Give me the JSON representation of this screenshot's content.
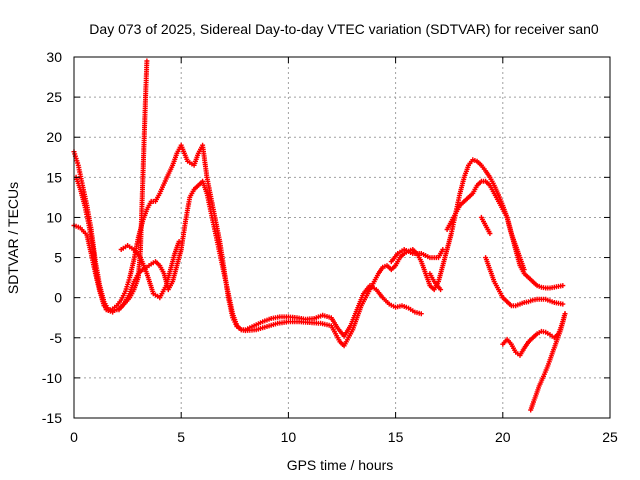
{
  "chart_data": {
    "type": "scatter",
    "title": "Day 073 of 2025, Sidereal Day-to-day VTEC variation (SDTVAR) for receiver san0",
    "xlabel": "GPS time / hours",
    "ylabel": "SDTVAR / TECUs",
    "xlim": [
      0,
      25
    ],
    "ylim": [
      -15,
      30
    ],
    "xticks": [
      0,
      5,
      10,
      15,
      20,
      25
    ],
    "yticks": [
      -15,
      -10,
      -5,
      0,
      5,
      10,
      15,
      20,
      25,
      30
    ],
    "grid": true,
    "marker": "+",
    "series": [
      {
        "name": "SDTVAR",
        "color": "#ff0000",
        "segments": [
          [
            [
              0.0,
              18.2
            ],
            [
              0.2,
              16.5
            ],
            [
              0.4,
              14.0
            ],
            [
              0.6,
              11.5
            ],
            [
              0.8,
              8.5
            ],
            [
              1.0,
              4.5
            ],
            [
              1.2,
              1.5
            ],
            [
              1.4,
              -0.5
            ],
            [
              1.6,
              -1.5
            ],
            [
              1.8,
              -1.7
            ],
            [
              2.0,
              -1.5
            ],
            [
              2.2,
              -1.2
            ],
            [
              2.4,
              -0.6
            ],
            [
              2.6,
              0.0
            ],
            [
              2.8,
              1.0
            ],
            [
              3.0,
              2.5
            ],
            [
              3.1,
              6.0
            ],
            [
              3.15,
              10.0
            ],
            [
              3.2,
              14.0
            ],
            [
              3.25,
              18.0
            ],
            [
              3.3,
              22.0
            ],
            [
              3.35,
              26.0
            ],
            [
              3.4,
              29.5
            ]
          ],
          [
            [
              0.0,
              9.0
            ],
            [
              0.3,
              8.7
            ],
            [
              0.6,
              7.8
            ],
            [
              0.8,
              5.5
            ],
            [
              1.0,
              3.0
            ],
            [
              1.2,
              0.8
            ],
            [
              1.4,
              -1.0
            ],
            [
              1.6,
              -1.6
            ],
            [
              1.8,
              -1.4
            ],
            [
              2.0,
              -1.0
            ],
            [
              2.2,
              -0.3
            ],
            [
              2.4,
              0.8
            ],
            [
              2.6,
              2.5
            ],
            [
              2.8,
              4.8
            ],
            [
              3.0,
              7.5
            ],
            [
              3.2,
              9.5
            ],
            [
              3.4,
              11.0
            ],
            [
              3.6,
              12.0
            ],
            [
              3.8,
              12.0
            ],
            [
              4.0,
              13.0
            ],
            [
              4.3,
              14.8
            ],
            [
              4.6,
              16.5
            ],
            [
              4.8,
              18.0
            ],
            [
              5.0,
              19.0
            ],
            [
              5.3,
              17.0
            ],
            [
              5.6,
              16.5
            ],
            [
              5.8,
              18.0
            ],
            [
              6.0,
              19.0
            ],
            [
              6.2,
              15.0
            ],
            [
              6.5,
              11.0
            ],
            [
              6.8,
              7.0
            ],
            [
              7.0,
              3.5
            ],
            [
              7.2,
              0.0
            ],
            [
              7.4,
              -2.5
            ],
            [
              7.6,
              -3.6
            ],
            [
              7.8,
              -4.0
            ],
            [
              8.0,
              -4.1
            ],
            [
              8.5,
              -4.0
            ],
            [
              9.0,
              -3.6
            ],
            [
              9.5,
              -3.2
            ],
            [
              10.0,
              -3.0
            ],
            [
              10.5,
              -3.0
            ],
            [
              11.0,
              -3.1
            ],
            [
              11.5,
              -3.2
            ],
            [
              12.0,
              -3.5
            ],
            [
              12.2,
              -4.5
            ],
            [
              12.4,
              -5.5
            ],
            [
              12.6,
              -6.0
            ],
            [
              12.8,
              -5.0
            ],
            [
              13.0,
              -4.0
            ],
            [
              13.2,
              -2.5
            ],
            [
              13.4,
              -1.0
            ],
            [
              13.6,
              0.0
            ],
            [
              13.8,
              1.0
            ],
            [
              14.0,
              2.0
            ],
            [
              14.2,
              3.0
            ],
            [
              14.4,
              3.8
            ],
            [
              14.6,
              4.0
            ],
            [
              14.8,
              3.5
            ],
            [
              15.0,
              4.0
            ],
            [
              15.2,
              5.0
            ],
            [
              15.4,
              5.5
            ],
            [
              15.6,
              5.8
            ],
            [
              15.8,
              6.0
            ],
            [
              16.0,
              5.5
            ],
            [
              16.2,
              4.5
            ],
            [
              16.4,
              3.0
            ],
            [
              16.6,
              1.5
            ],
            [
              16.8,
              1.0
            ],
            [
              17.0,
              2.0
            ],
            [
              17.2,
              4.0
            ],
            [
              17.4,
              6.0
            ],
            [
              17.6,
              8.0
            ],
            [
              17.8,
              10.5
            ],
            [
              18.0,
              13.0
            ],
            [
              18.2,
              15.0
            ],
            [
              18.4,
              16.5
            ],
            [
              18.6,
              17.2
            ],
            [
              18.8,
              17.0
            ],
            [
              19.0,
              16.5
            ],
            [
              19.2,
              15.8
            ],
            [
              19.4,
              15.0
            ],
            [
              19.6,
              14.0
            ],
            [
              19.8,
              12.8
            ],
            [
              20.0,
              11.5
            ],
            [
              20.2,
              10.0
            ],
            [
              20.4,
              8.0
            ],
            [
              20.6,
              6.0
            ],
            [
              20.8,
              4.0
            ],
            [
              21.0,
              3.0
            ],
            [
              21.2,
              2.5
            ],
            [
              21.4,
              2.0
            ],
            [
              21.6,
              1.5
            ],
            [
              21.8,
              1.3
            ],
            [
              22.0,
              1.2
            ],
            [
              22.2,
              1.2
            ],
            [
              22.4,
              1.3
            ],
            [
              22.6,
              1.4
            ],
            [
              22.8,
              1.5
            ]
          ],
          [
            [
              0.1,
              15.0
            ],
            [
              0.3,
              13.5
            ],
            [
              0.5,
              11.5
            ],
            [
              0.7,
              9.0
            ],
            [
              0.9,
              6.0
            ],
            [
              1.0,
              3.5
            ],
            [
              1.2,
              1.0
            ],
            [
              1.5,
              -1.5
            ],
            [
              1.8,
              -1.8
            ]
          ],
          [
            [
              2.1,
              -1.5
            ],
            [
              2.4,
              -0.5
            ],
            [
              2.6,
              0.5
            ],
            [
              2.8,
              2.0
            ],
            [
              3.0,
              3.0
            ],
            [
              3.2,
              3.5
            ],
            [
              3.4,
              3.8
            ],
            [
              3.6,
              4.2
            ],
            [
              3.8,
              4.5
            ],
            [
              4.0,
              4.0
            ],
            [
              4.2,
              3.0
            ],
            [
              4.4,
              1.0
            ],
            [
              4.6,
              2.0
            ],
            [
              4.8,
              4.0
            ],
            [
              5.0,
              6.0
            ],
            [
              5.2,
              9.5
            ],
            [
              5.4,
              12.5
            ],
            [
              5.6,
              13.5
            ],
            [
              5.8,
              14.0
            ],
            [
              6.0,
              14.5
            ],
            [
              6.2,
              13.0
            ],
            [
              6.4,
              10.5
            ],
            [
              6.6,
              8.0
            ],
            [
              6.8,
              5.5
            ],
            [
              7.0,
              3.0
            ],
            [
              7.2,
              0.5
            ],
            [
              7.4,
              -2.0
            ],
            [
              7.6,
              -3.5
            ],
            [
              7.8,
              -4.0
            ],
            [
              8.0,
              -4.0
            ],
            [
              8.4,
              -3.5
            ],
            [
              8.8,
              -3.0
            ],
            [
              9.2,
              -2.6
            ],
            [
              9.6,
              -2.4
            ],
            [
              10.0,
              -2.4
            ],
            [
              10.4,
              -2.5
            ],
            [
              10.8,
              -2.7
            ],
            [
              11.2,
              -2.6
            ],
            [
              11.6,
              -2.2
            ],
            [
              12.0,
              -2.5
            ],
            [
              12.3,
              -3.8
            ],
            [
              12.6,
              -4.8
            ],
            [
              12.9,
              -3.5
            ],
            [
              13.2,
              -1.5
            ],
            [
              13.5,
              0.5
            ],
            [
              13.8,
              1.5
            ],
            [
              14.1,
              1.0
            ],
            [
              14.4,
              0.0
            ],
            [
              14.7,
              -0.8
            ],
            [
              15.0,
              -1.2
            ],
            [
              15.3,
              -1.0
            ],
            [
              15.6,
              -1.3
            ],
            [
              15.9,
              -1.8
            ],
            [
              16.2,
              -2.0
            ]
          ],
          [
            [
              2.2,
              6.0
            ],
            [
              2.5,
              6.5
            ],
            [
              2.8,
              6.0
            ],
            [
              3.1,
              5.0
            ],
            [
              3.4,
              3.0
            ],
            [
              3.7,
              0.5
            ],
            [
              4.0,
              0.0
            ],
            [
              4.3,
              1.5
            ],
            [
              4.5,
              3.5
            ],
            [
              4.7,
              5.5
            ],
            [
              4.9,
              7.0
            ]
          ],
          [
            [
              14.8,
              4.5
            ],
            [
              15.1,
              5.5
            ],
            [
              15.4,
              6.0
            ],
            [
              15.8,
              5.5
            ],
            [
              16.2,
              5.5
            ],
            [
              16.6,
              5.0
            ],
            [
              17.0,
              5.0
            ],
            [
              17.2,
              6.0
            ]
          ],
          [
            [
              16.6,
              3.0
            ],
            [
              16.8,
              2.0
            ],
            [
              17.1,
              1.0
            ]
          ],
          [
            [
              17.4,
              8.5
            ],
            [
              17.6,
              9.5
            ],
            [
              17.8,
              10.5
            ],
            [
              18.0,
              11.5
            ],
            [
              18.2,
              12.0
            ],
            [
              18.4,
              12.5
            ],
            [
              18.6,
              13.0
            ],
            [
              18.8,
              14.0
            ],
            [
              19.0,
              14.5
            ],
            [
              19.2,
              14.5
            ],
            [
              19.4,
              14.0
            ],
            [
              19.6,
              13.0
            ],
            [
              19.8,
              12.0
            ],
            [
              20.0,
              11.0
            ],
            [
              20.2,
              10.0
            ],
            [
              20.4,
              8.0
            ],
            [
              20.6,
              6.5
            ],
            [
              20.8,
              5.0
            ],
            [
              21.0,
              3.5
            ]
          ],
          [
            [
              19.0,
              10.0
            ],
            [
              19.2,
              9.0
            ],
            [
              19.4,
              8.0
            ]
          ],
          [
            [
              19.2,
              5.0
            ],
            [
              19.4,
              3.5
            ],
            [
              19.6,
              2.0
            ],
            [
              19.8,
              1.0
            ],
            [
              20.0,
              0.0
            ],
            [
              20.2,
              -0.5
            ],
            [
              20.4,
              -1.0
            ],
            [
              20.6,
              -1.0
            ],
            [
              20.8,
              -0.8
            ],
            [
              21.0,
              -0.6
            ],
            [
              21.2,
              -0.5
            ],
            [
              21.4,
              -0.3
            ],
            [
              21.6,
              -0.2
            ],
            [
              21.8,
              -0.2
            ],
            [
              22.0,
              -0.2
            ],
            [
              22.2,
              -0.4
            ],
            [
              22.4,
              -0.6
            ],
            [
              22.6,
              -0.7
            ],
            [
              22.8,
              -0.8
            ]
          ],
          [
            [
              20.0,
              -5.8
            ],
            [
              20.2,
              -5.2
            ],
            [
              20.4,
              -5.8
            ],
            [
              20.6,
              -6.8
            ],
            [
              20.8,
              -7.2
            ],
            [
              21.0,
              -6.3
            ],
            [
              21.2,
              -5.5
            ],
            [
              21.4,
              -5.0
            ],
            [
              21.6,
              -4.5
            ],
            [
              21.8,
              -4.2
            ],
            [
              22.0,
              -4.3
            ],
            [
              22.2,
              -4.6
            ],
            [
              22.4,
              -5.0
            ],
            [
              22.6,
              -4.5
            ],
            [
              22.8,
              -3.0
            ],
            [
              22.9,
              -2.0
            ]
          ],
          [
            [
              21.3,
              -14.0
            ],
            [
              21.5,
              -12.5
            ],
            [
              21.7,
              -11.0
            ],
            [
              21.9,
              -9.8
            ],
            [
              22.1,
              -8.5
            ],
            [
              22.3,
              -7.0
            ],
            [
              22.5,
              -5.5
            ],
            [
              22.7,
              -4.0
            ],
            [
              22.8,
              -3.0
            ],
            [
              22.9,
              -2.0
            ]
          ]
        ]
      }
    ]
  }
}
